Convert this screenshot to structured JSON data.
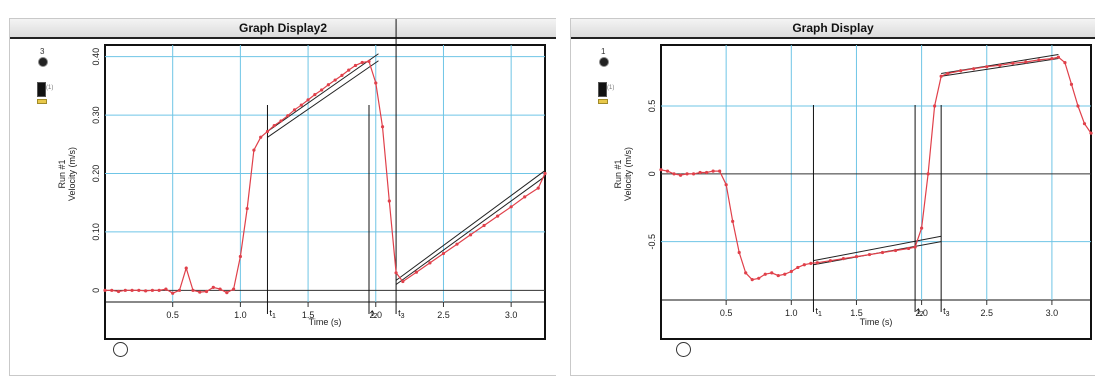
{
  "chart_data": [
    {
      "type": "line",
      "title": "Graph Display2",
      "ylabel_run": "Run #1",
      "ylabel": "Velocity (m/s)",
      "xlabel": "Time (s)",
      "display_number": "3",
      "xlim": [
        0,
        3.25
      ],
      "ylim": [
        -0.02,
        0.42
      ],
      "x_ticks": [
        0.5,
        1.0,
        1.5,
        2.0,
        2.5,
        3.0
      ],
      "x_tick_labels": [
        "0.5",
        "1.0",
        "1.5",
        "2.0",
        "2.5",
        "3.0"
      ],
      "y_ticks": [
        0,
        0.1,
        0.2,
        0.3,
        0.4
      ],
      "y_tick_labels": [
        "0",
        "0.10",
        "0.20",
        "0.30",
        "0.40"
      ],
      "grid": true,
      "series": [
        {
          "color": "#e0404a",
          "points": [
            [
              0.0,
              0.0
            ],
            [
              0.05,
              0.0
            ],
            [
              0.1,
              -0.002
            ],
            [
              0.15,
              0.0
            ],
            [
              0.2,
              0.0
            ],
            [
              0.25,
              0.0
            ],
            [
              0.3,
              -0.001
            ],
            [
              0.35,
              0.0
            ],
            [
              0.4,
              0.0
            ],
            [
              0.45,
              0.002
            ],
            [
              0.5,
              -0.005
            ],
            [
              0.55,
              0.0
            ],
            [
              0.6,
              0.038
            ],
            [
              0.65,
              0.0
            ],
            [
              0.7,
              -0.003
            ],
            [
              0.75,
              -0.002
            ],
            [
              0.8,
              0.005
            ],
            [
              0.85,
              0.002
            ],
            [
              0.9,
              -0.004
            ],
            [
              0.95,
              0.002
            ],
            [
              1.0,
              0.058
            ],
            [
              1.05,
              0.14
            ],
            [
              1.1,
              0.24
            ],
            [
              1.15,
              0.262
            ],
            [
              1.2,
              0.272
            ],
            [
              1.25,
              0.282
            ],
            [
              1.3,
              0.29
            ],
            [
              1.35,
              0.299
            ],
            [
              1.4,
              0.309
            ],
            [
              1.45,
              0.317
            ],
            [
              1.5,
              0.326
            ],
            [
              1.55,
              0.335
            ],
            [
              1.6,
              0.343
            ],
            [
              1.65,
              0.352
            ],
            [
              1.7,
              0.36
            ],
            [
              1.75,
              0.368
            ],
            [
              1.8,
              0.377
            ],
            [
              1.85,
              0.385
            ],
            [
              1.9,
              0.39
            ],
            [
              1.95,
              0.392
            ],
            [
              2.0,
              0.355
            ],
            [
              2.05,
              0.28
            ],
            [
              2.1,
              0.153
            ],
            [
              2.15,
              0.03
            ],
            [
              2.2,
              0.015
            ],
            [
              2.3,
              0.031
            ],
            [
              2.4,
              0.047
            ],
            [
              2.5,
              0.063
            ],
            [
              2.6,
              0.079
            ],
            [
              2.7,
              0.095
            ],
            [
              2.8,
              0.111
            ],
            [
              2.9,
              0.127
            ],
            [
              3.0,
              0.143
            ],
            [
              3.1,
              0.16
            ],
            [
              3.2,
              0.175
            ],
            [
              3.25,
              0.2
            ]
          ]
        }
      ],
      "fit_lines": [
        {
          "x": [
            1.2,
            2.02
          ],
          "y": [
            0.272,
            0.405
          ]
        },
        {
          "x": [
            1.2,
            2.02
          ],
          "y": [
            0.262,
            0.393
          ]
        },
        {
          "x": [
            2.15,
            3.25
          ],
          "y": [
            0.017,
            0.205
          ]
        },
        {
          "x": [
            2.15,
            3.25
          ],
          "y": [
            0.01,
            0.195
          ]
        }
      ],
      "markers": [
        {
          "label": "t",
          "sub": "1",
          "x": 1.2
        },
        {
          "label": "t",
          "sub": "2",
          "x": 1.95
        },
        {
          "label": "t",
          "sub": "3",
          "x": 2.15
        }
      ]
    },
    {
      "type": "line",
      "title": "Graph Display",
      "ylabel_run": "Run #1",
      "ylabel": "Velocity (m/s)",
      "xlabel": "Time (s)",
      "display_number": "1",
      "xlim": [
        0,
        3.3
      ],
      "ylim": [
        -0.93,
        0.95
      ],
      "x_ticks": [
        0.5,
        1.0,
        1.5,
        2.0,
        2.5,
        3.0
      ],
      "x_tick_labels": [
        "0.5",
        "1.0",
        "1.5",
        "2.0",
        "2.5",
        "3.0"
      ],
      "y_ticks": [
        -0.5,
        0,
        0.5
      ],
      "y_tick_labels": [
        "-0.5",
        "0",
        "0.5"
      ],
      "grid": true,
      "series": [
        {
          "color": "#e0404a",
          "points": [
            [
              0.0,
              0.03
            ],
            [
              0.05,
              0.02
            ],
            [
              0.1,
              0.0
            ],
            [
              0.15,
              -0.01
            ],
            [
              0.2,
              0.0
            ],
            [
              0.25,
              0.0
            ],
            [
              0.3,
              0.01
            ],
            [
              0.35,
              0.01
            ],
            [
              0.4,
              0.02
            ],
            [
              0.45,
              0.02
            ],
            [
              0.5,
              -0.08
            ],
            [
              0.55,
              -0.35
            ],
            [
              0.6,
              -0.58
            ],
            [
              0.65,
              -0.73
            ],
            [
              0.7,
              -0.78
            ],
            [
              0.75,
              -0.77
            ],
            [
              0.8,
              -0.74
            ],
            [
              0.85,
              -0.73
            ],
            [
              0.9,
              -0.75
            ],
            [
              0.95,
              -0.74
            ],
            [
              1.0,
              -0.72
            ],
            [
              1.05,
              -0.69
            ],
            [
              1.1,
              -0.67
            ],
            [
              1.15,
              -0.66
            ],
            [
              1.2,
              -0.655
            ],
            [
              1.3,
              -0.64
            ],
            [
              1.4,
              -0.625
            ],
            [
              1.5,
              -0.61
            ],
            [
              1.6,
              -0.595
            ],
            [
              1.7,
              -0.58
            ],
            [
              1.8,
              -0.565
            ],
            [
              1.9,
              -0.55
            ],
            [
              1.95,
              -0.54
            ],
            [
              2.0,
              -0.4
            ],
            [
              2.05,
              0.0
            ],
            [
              2.1,
              0.5
            ],
            [
              2.15,
              0.72
            ],
            [
              2.2,
              0.74
            ],
            [
              2.3,
              0.76
            ],
            [
              2.4,
              0.775
            ],
            [
              2.5,
              0.79
            ],
            [
              2.6,
              0.8
            ],
            [
              2.7,
              0.815
            ],
            [
              2.8,
              0.825
            ],
            [
              2.9,
              0.84
            ],
            [
              3.0,
              0.85
            ],
            [
              3.05,
              0.86
            ],
            [
              3.1,
              0.82
            ],
            [
              3.15,
              0.66
            ],
            [
              3.2,
              0.5
            ],
            [
              3.25,
              0.37
            ],
            [
              3.3,
              0.3
            ]
          ]
        }
      ],
      "fit_lines": [
        {
          "x": [
            1.17,
            2.15
          ],
          "y": [
            -0.64,
            -0.46
          ]
        },
        {
          "x": [
            1.17,
            2.15
          ],
          "y": [
            -0.67,
            -0.5
          ]
        },
        {
          "x": [
            2.15,
            3.05
          ],
          "y": [
            0.74,
            0.88
          ]
        },
        {
          "x": [
            2.15,
            3.05
          ],
          "y": [
            0.72,
            0.85
          ]
        }
      ],
      "markers": [
        {
          "label": "t",
          "sub": "1",
          "x": 1.17
        },
        {
          "label": "t",
          "sub": "2",
          "x": 1.95
        },
        {
          "label": "t",
          "sub": "3",
          "x": 2.15
        }
      ]
    }
  ]
}
